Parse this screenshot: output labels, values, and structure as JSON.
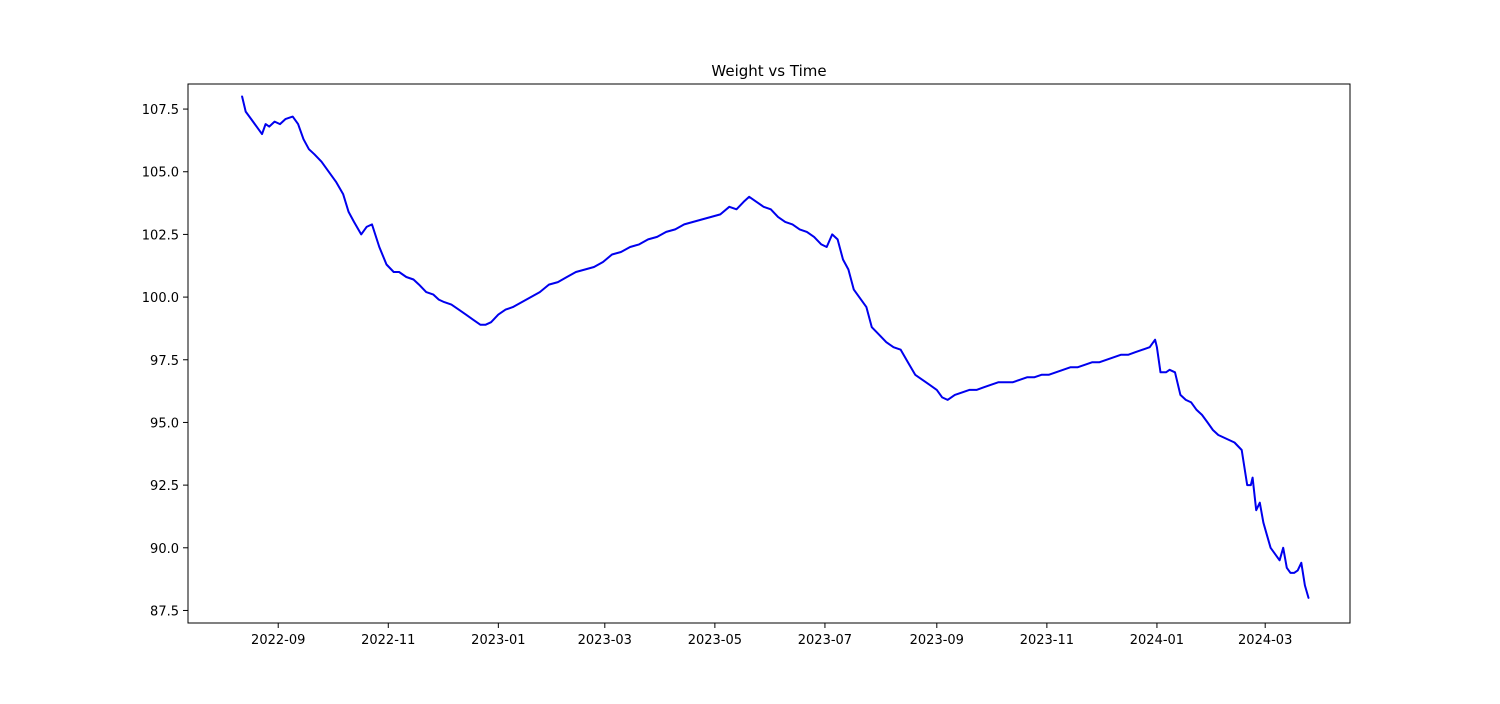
{
  "chart_data": {
    "type": "line",
    "title": "Weight vs Time",
    "xlabel": "",
    "ylabel": "",
    "x_tick_labels": [
      "2022-09",
      "2022-11",
      "2023-01",
      "2023-03",
      "2023-05",
      "2023-07",
      "2023-09",
      "2023-11",
      "2024-01",
      "2024-03"
    ],
    "y_tick_labels": [
      "87.5",
      "90.0",
      "92.5",
      "95.0",
      "97.5",
      "100.0",
      "102.5",
      "105.0",
      "107.5"
    ],
    "y_ticks": [
      87.5,
      90.0,
      92.5,
      95.0,
      97.5,
      100.0,
      102.5,
      105.0,
      107.5
    ],
    "xlim": [
      "2022-07-13",
      "2024-04-17"
    ],
    "ylim": [
      87.0,
      108.5
    ],
    "grid": false,
    "legend": "none",
    "line_color": "#0000ee",
    "series": [
      {
        "x": [
          "2022-08-12",
          "2022-08-14",
          "2022-08-17",
          "2022-08-20",
          "2022-08-23",
          "2022-08-25",
          "2022-08-27",
          "2022-08-30",
          "2022-09-02",
          "2022-09-05",
          "2022-09-09",
          "2022-09-12",
          "2022-09-15",
          "2022-09-18",
          "2022-09-21",
          "2022-09-25",
          "2022-09-29",
          "2022-10-03",
          "2022-10-07",
          "2022-10-10",
          "2022-10-13",
          "2022-10-17",
          "2022-10-20",
          "2022-10-23",
          "2022-10-27",
          "2022-10-31",
          "2022-11-04",
          "2022-11-07",
          "2022-11-11",
          "2022-11-15",
          "2022-11-18",
          "2022-11-22",
          "2022-11-26",
          "2022-11-29",
          "2022-12-02",
          "2022-12-06",
          "2022-12-10",
          "2022-12-14",
          "2022-12-18",
          "2022-12-22",
          "2022-12-25",
          "2022-12-28",
          "2023-01-01",
          "2023-01-05",
          "2023-01-09",
          "2023-01-14",
          "2023-01-19",
          "2023-01-24",
          "2023-01-29",
          "2023-02-03",
          "2023-02-08",
          "2023-02-13",
          "2023-02-18",
          "2023-02-23",
          "2023-02-28",
          "2023-03-05",
          "2023-03-10",
          "2023-03-15",
          "2023-03-20",
          "2023-03-25",
          "2023-03-30",
          "2023-04-04",
          "2023-04-09",
          "2023-04-14",
          "2023-04-19",
          "2023-04-24",
          "2023-04-29",
          "2023-05-04",
          "2023-05-09",
          "2023-05-13",
          "2023-05-17",
          "2023-05-20",
          "2023-05-24",
          "2023-05-28",
          "2023-06-01",
          "2023-06-05",
          "2023-06-09",
          "2023-06-13",
          "2023-06-17",
          "2023-06-21",
          "2023-06-25",
          "2023-06-29",
          "2023-07-02",
          "2023-07-05",
          "2023-07-08",
          "2023-07-11",
          "2023-07-14",
          "2023-07-17",
          "2023-07-21",
          "2023-07-24",
          "2023-07-27",
          "2023-07-31",
          "2023-08-04",
          "2023-08-08",
          "2023-08-12",
          "2023-08-16",
          "2023-08-20",
          "2023-08-24",
          "2023-08-28",
          "2023-09-01",
          "2023-09-04",
          "2023-09-07",
          "2023-09-11",
          "2023-09-15",
          "2023-09-19",
          "2023-09-23",
          "2023-09-27",
          "2023-10-01",
          "2023-10-05",
          "2023-10-09",
          "2023-10-13",
          "2023-10-17",
          "2023-10-21",
          "2023-10-25",
          "2023-10-29",
          "2023-11-02",
          "2023-11-06",
          "2023-11-10",
          "2023-11-14",
          "2023-11-18",
          "2023-11-22",
          "2023-11-26",
          "2023-11-30",
          "2023-12-04",
          "2023-12-08",
          "2023-12-12",
          "2023-12-16",
          "2023-12-20",
          "2023-12-24",
          "2023-12-28",
          "2023-12-31",
          "2024-01-01",
          "2024-01-03",
          "2024-01-06",
          "2024-01-08",
          "2024-01-11",
          "2024-01-14",
          "2024-01-17",
          "2024-01-20",
          "2024-01-23",
          "2024-01-26",
          "2024-01-29",
          "2024-02-01",
          "2024-02-04",
          "2024-02-07",
          "2024-02-10",
          "2024-02-13",
          "2024-02-17",
          "2024-02-20",
          "2024-02-22",
          "2024-02-23",
          "2024-02-25",
          "2024-02-27",
          "2024-02-29",
          "2024-03-02",
          "2024-03-04",
          "2024-03-07",
          "2024-03-09",
          "2024-03-11",
          "2024-03-13",
          "2024-03-15",
          "2024-03-17",
          "2024-03-19",
          "2024-03-21",
          "2024-03-23",
          "2024-03-25"
        ],
        "y": [
          108.0,
          107.4,
          107.1,
          106.8,
          106.5,
          106.9,
          106.8,
          107.0,
          106.9,
          107.1,
          107.2,
          106.9,
          106.3,
          105.9,
          105.7,
          105.4,
          105.0,
          104.6,
          104.1,
          103.4,
          103.0,
          102.5,
          102.8,
          102.9,
          102.0,
          101.3,
          101.0,
          101.0,
          100.8,
          100.7,
          100.5,
          100.2,
          100.1,
          99.9,
          99.8,
          99.7,
          99.5,
          99.3,
          99.1,
          98.9,
          98.9,
          99.0,
          99.3,
          99.5,
          99.6,
          99.8,
          100.0,
          100.2,
          100.5,
          100.6,
          100.8,
          101.0,
          101.1,
          101.2,
          101.4,
          101.7,
          101.8,
          102.0,
          102.1,
          102.3,
          102.4,
          102.6,
          102.7,
          102.9,
          103.0,
          103.1,
          103.2,
          103.3,
          103.6,
          103.5,
          103.8,
          104.0,
          103.8,
          103.6,
          103.5,
          103.2,
          103.0,
          102.9,
          102.7,
          102.6,
          102.4,
          102.1,
          102.0,
          102.5,
          102.3,
          101.5,
          101.1,
          100.3,
          99.9,
          99.6,
          98.8,
          98.5,
          98.2,
          98.0,
          97.9,
          97.4,
          96.9,
          96.7,
          96.5,
          96.3,
          96.0,
          95.9,
          96.1,
          96.2,
          96.3,
          96.3,
          96.4,
          96.5,
          96.6,
          96.6,
          96.6,
          96.7,
          96.8,
          96.8,
          96.9,
          96.9,
          97.0,
          97.1,
          97.2,
          97.2,
          97.3,
          97.4,
          97.4,
          97.5,
          97.6,
          97.7,
          97.7,
          97.8,
          97.9,
          98.0,
          98.3,
          98.0,
          97.0,
          97.0,
          97.1,
          97.0,
          96.1,
          95.9,
          95.8,
          95.5,
          95.3,
          95.0,
          94.7,
          94.5,
          94.4,
          94.3,
          94.2,
          93.9,
          92.5,
          92.5,
          92.8,
          91.5,
          91.8,
          91.0,
          90.5,
          90.0,
          89.7,
          89.5,
          90.0,
          89.2,
          89.0,
          89.0,
          89.1,
          89.4,
          88.5,
          88.0
        ]
      }
    ]
  }
}
